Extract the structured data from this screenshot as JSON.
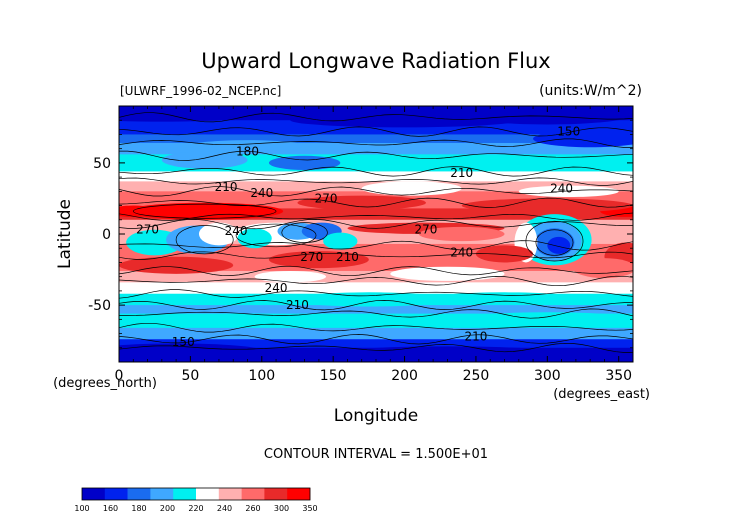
{
  "chart_data": {
    "type": "heatmap",
    "title": "Upward Longwave Radiation Flux",
    "file_label": "[ULWRF_1996-02_NCEP.nc]",
    "units_label": "(units:W/m^2)",
    "xlabel": "Longitude",
    "ylabel": "Latitude",
    "x_unit_note": "(degrees_east)",
    "y_unit_note": "(degrees_north)",
    "xlim": [
      0,
      360
    ],
    "ylim": [
      -90,
      90
    ],
    "x_ticks": [
      0,
      50,
      100,
      150,
      200,
      250,
      300,
      350
    ],
    "y_ticks": [
      -50,
      0,
      50
    ],
    "contour_interval_text": "CONTOUR INTERVAL = 1.500E+01",
    "contour_labels": [
      {
        "text": "150",
        "lon": 315,
        "lat": 72
      },
      {
        "text": "150",
        "lon": 45,
        "lat": -76
      },
      {
        "text": "180",
        "lon": 90,
        "lat": 58
      },
      {
        "text": "210",
        "lon": 240,
        "lat": 43
      },
      {
        "text": "210",
        "lon": 75,
        "lat": 33
      },
      {
        "text": "210",
        "lon": 125,
        "lat": -50
      },
      {
        "text": "210",
        "lon": 250,
        "lat": -72
      },
      {
        "text": "240",
        "lon": 100,
        "lat": 29
      },
      {
        "text": "240",
        "lon": 310,
        "lat": 32
      },
      {
        "text": "240",
        "lon": 240,
        "lat": -13
      },
      {
        "text": "240",
        "lon": 110,
        "lat": -38
      },
      {
        "text": "240",
        "lon": 82,
        "lat": 2
      },
      {
        "text": "270",
        "lon": 145,
        "lat": 25
      },
      {
        "text": "270",
        "lon": 215,
        "lat": 3
      },
      {
        "text": "270",
        "lon": 135,
        "lat": -16
      },
      {
        "text": "210",
        "lon": 160,
        "lat": -16
      },
      {
        "text": "270",
        "lon": 20,
        "lat": 3
      }
    ],
    "colorbar": {
      "ticks": [
        "100",
        "160",
        "180",
        "200",
        "220",
        "240",
        "260",
        "300",
        "350"
      ],
      "colors": [
        "#0000c8",
        "#0022ee",
        "#1a6cf0",
        "#3fa8ff",
        "#00f0f0",
        "#ffffff",
        "#ffb0b0",
        "#ff6a6a",
        "#e82a2a",
        "#ff0000"
      ]
    },
    "series_colors": {
      "c150": "#0000c8",
      "c170": "#0022ee",
      "c190": "#1a6cf0",
      "c205": "#3fa8ff",
      "c220": "#00f0f0",
      "c235": "#ffffff",
      "c250": "#ffb0b0",
      "c265": "#ff6a6a",
      "c285": "#e82a2a",
      "c310": "#ff0000"
    }
  }
}
